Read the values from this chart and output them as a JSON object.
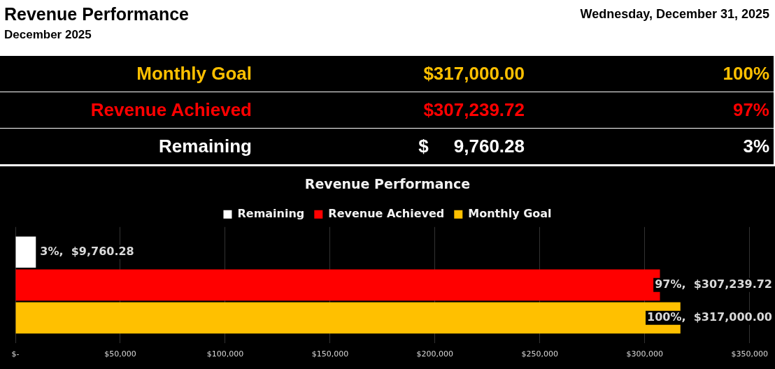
{
  "chart_data": [
    {
      "type": "other",
      "title": "Revenue Performance",
      "subtitle": "December 2025",
      "annotations": [
        "Wednesday, December 31, 2025",
        "Monthly Goal",
        "$317,000.00",
        "100%",
        "Revenue Achieved",
        "$307,239.72",
        "97%",
        "Remaining",
        "$     9,760.28",
        "3%"
      ],
      "colors": [
        "#ffc000",
        "#ff0000",
        "#ffffff"
      ]
    },
    {
      "type": "bar",
      "orientation": "horizontal",
      "title": "Revenue Performance",
      "categories": [
        null
      ],
      "series": [
        {
          "name": "Remaining",
          "color": "#ffffff",
          "values": [
            9760.28
          ],
          "value_labels": [
            "3%,  $9,760.28"
          ]
        },
        {
          "name": "Revenue Achieved",
          "color": "#ff0000",
          "values": [
            307239.72
          ],
          "value_labels": [
            "97%,  $307,239.72"
          ]
        },
        {
          "name": "Monthly Goal",
          "color": "#ffc000",
          "values": [
            317000
          ],
          "value_labels": [
            "100%,  $317,000.00"
          ]
        }
      ],
      "xlim": [
        0,
        350000
      ],
      "xticks": [
        {
          "value": 0,
          "label": "$-"
        },
        {
          "value": 50000,
          "label": "$50,000"
        },
        {
          "value": 100000,
          "label": "$100,000"
        },
        {
          "value": 150000,
          "label": "$150,000"
        },
        {
          "value": 200000,
          "label": "$200,000"
        },
        {
          "value": 250000,
          "label": "$250,000"
        },
        {
          "value": 300000,
          "label": "$300,000"
        },
        {
          "value": 350000,
          "label": "$350,000"
        }
      ],
      "grid": "x",
      "legend": "top"
    }
  ]
}
